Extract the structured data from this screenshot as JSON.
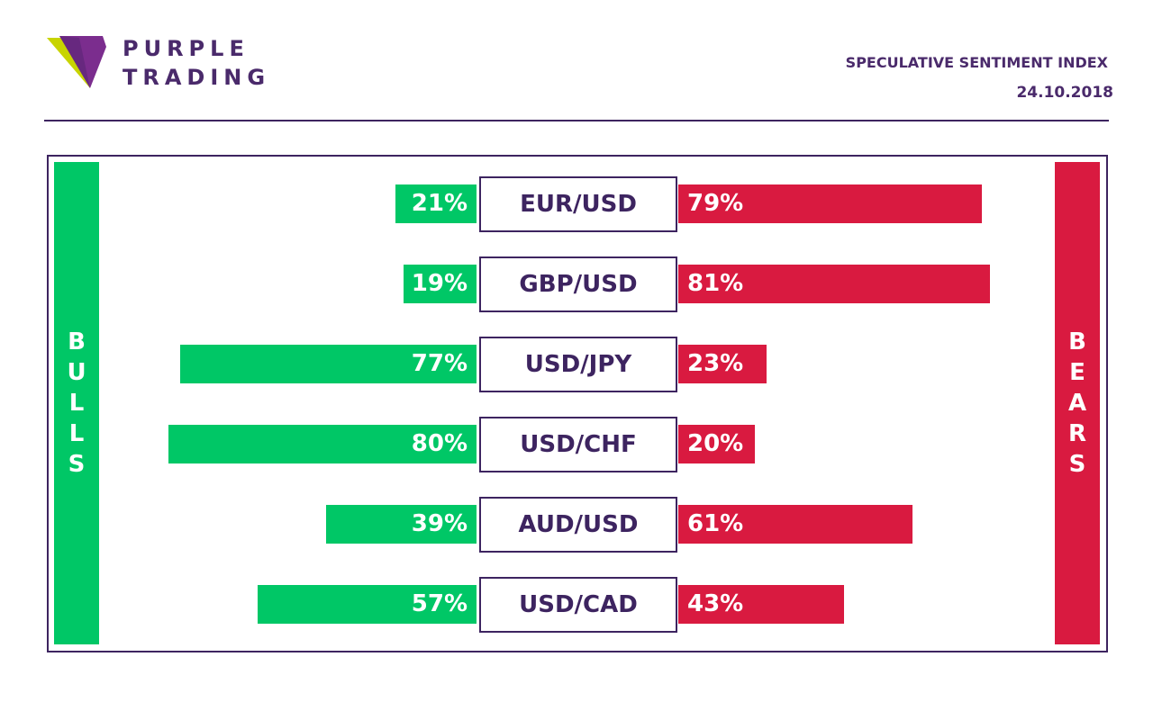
{
  "brand": {
    "line1": "PURPLE",
    "line2": "TRADING",
    "colors": {
      "purple": "#4a2a6b",
      "lime": "#c8d400",
      "violet": "#7b2d8e"
    }
  },
  "header": {
    "title": "SPECULATIVE SENTIMENT INDEX",
    "date": "24.10.2018"
  },
  "colors": {
    "bulls": "#00c766",
    "bears": "#d91a40",
    "frame": "#3d2460"
  },
  "chart_data": {
    "type": "bar",
    "orientation": "horizontal-diverging",
    "side_labels": {
      "left": "BULLS",
      "right": "BEARS"
    },
    "categories": [
      "EUR/USD",
      "GBP/USD",
      "USD/JPY",
      "USD/CHF",
      "AUD/USD",
      "USD/CAD"
    ],
    "series": [
      {
        "name": "BULLS",
        "values": [
          21,
          19,
          77,
          80,
          39,
          57
        ],
        "labels": [
          "21%",
          "19%",
          "77%",
          "80%",
          "39%",
          "57%"
        ]
      },
      {
        "name": "BEARS",
        "values": [
          79,
          81,
          23,
          20,
          61,
          43
        ],
        "labels": [
          "79%",
          "81%",
          "23%",
          "20%",
          "61%",
          "43%"
        ]
      }
    ],
    "unit": "%",
    "xlim": [
      0,
      100
    ]
  }
}
